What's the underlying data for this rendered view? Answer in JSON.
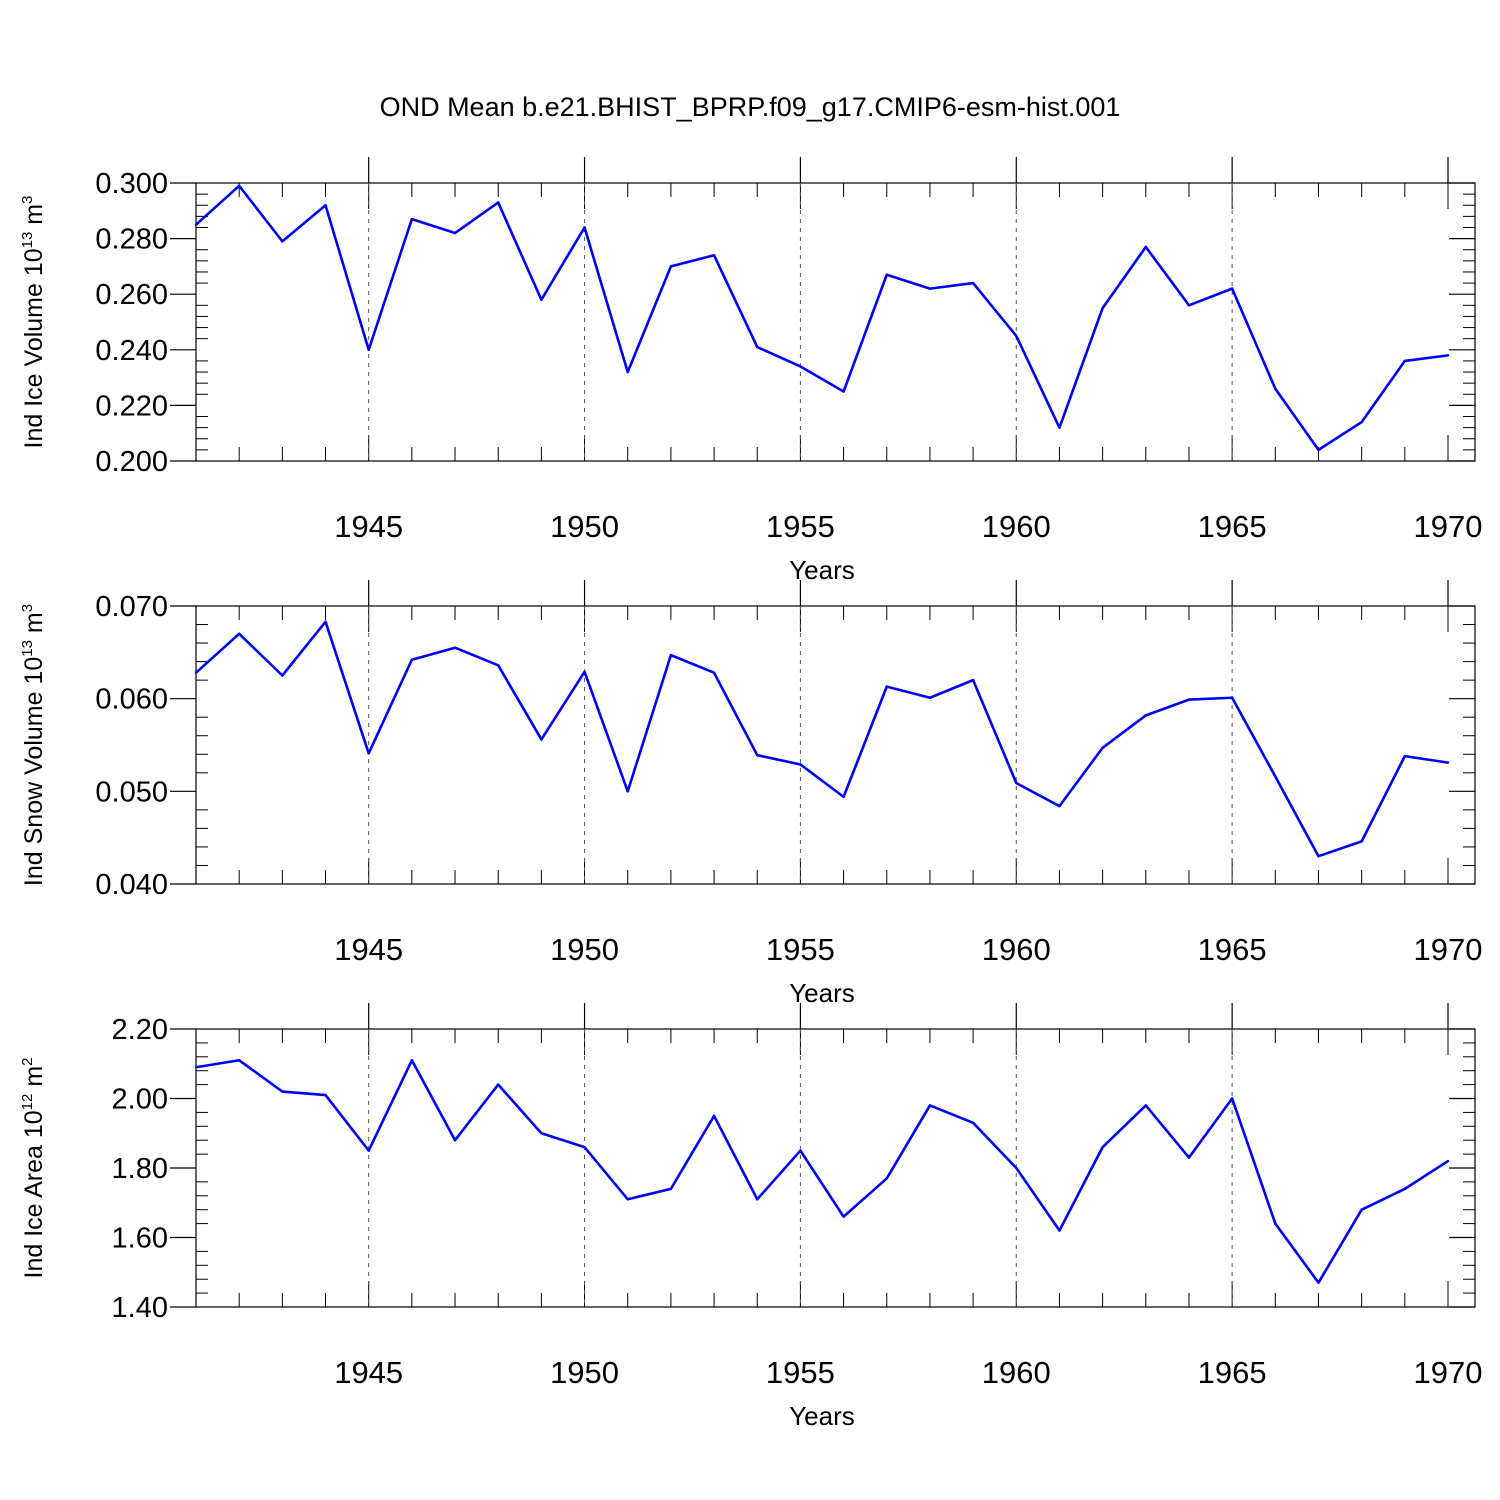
{
  "title": "OND Mean b.e21.BHIST_BPRP.f09_g17.CMIP6-esm-hist.001",
  "line_color": "#0000ff",
  "chart_data": [
    {
      "type": "line",
      "ylabel_main": "Ind Ice Volume 10",
      "ylabel_exp": "13",
      "ylabel_unit": " m",
      "ylabel_unit_exp": "3",
      "xlabel": "Years",
      "xlim": [
        1941,
        1970
      ],
      "ylim": [
        0.2,
        0.3
      ],
      "y_ticks": [
        0.2,
        0.22,
        0.24,
        0.26,
        0.28,
        0.3
      ],
      "y_tick_labels": [
        "0.200",
        "0.220",
        "0.240",
        "0.260",
        "0.280",
        "0.300"
      ],
      "x_ticks": [
        1945,
        1950,
        1955,
        1960,
        1965,
        1970
      ],
      "x_tick_labels": [
        "1945",
        "1950",
        "1955",
        "1960",
        "1965",
        "1970"
      ],
      "x": [
        1941,
        1942,
        1943,
        1944,
        1945,
        1946,
        1947,
        1948,
        1949,
        1950,
        1951,
        1952,
        1953,
        1954,
        1955,
        1956,
        1957,
        1958,
        1959,
        1960,
        1961,
        1962,
        1963,
        1964,
        1965,
        1966,
        1967,
        1968,
        1969,
        1970
      ],
      "values": [
        0.285,
        0.299,
        0.279,
        0.292,
        0.24,
        0.287,
        0.282,
        0.293,
        0.258,
        0.284,
        0.232,
        0.27,
        0.274,
        0.241,
        0.234,
        0.225,
        0.267,
        0.262,
        0.264,
        0.245,
        0.212,
        0.255,
        0.277,
        0.256,
        0.262,
        0.226,
        0.204,
        0.214,
        0.236,
        0.238
      ]
    },
    {
      "type": "line",
      "ylabel_main": "Ind Snow Volume 10",
      "ylabel_exp": "13",
      "ylabel_unit": " m",
      "ylabel_unit_exp": "3",
      "xlabel": "Years",
      "xlim": [
        1941,
        1970
      ],
      "ylim": [
        0.04,
        0.07
      ],
      "y_ticks": [
        0.04,
        0.05,
        0.06,
        0.07
      ],
      "y_tick_labels": [
        "0.040",
        "0.050",
        "0.060",
        "0.070"
      ],
      "x_ticks": [
        1945,
        1950,
        1955,
        1960,
        1965,
        1970
      ],
      "x_tick_labels": [
        "1945",
        "1950",
        "1955",
        "1960",
        "1965",
        "1970"
      ],
      "x": [
        1941,
        1942,
        1943,
        1944,
        1945,
        1946,
        1947,
        1948,
        1949,
        1950,
        1951,
        1952,
        1953,
        1954,
        1955,
        1956,
        1957,
        1958,
        1959,
        1960,
        1961,
        1962,
        1963,
        1964,
        1965,
        1966,
        1967,
        1968,
        1969,
        1970
      ],
      "values": [
        0.0628,
        0.067,
        0.0625,
        0.0683,
        0.0541,
        0.0642,
        0.0655,
        0.0636,
        0.0556,
        0.0629,
        0.05,
        0.0647,
        0.0628,
        0.0539,
        0.0529,
        0.0494,
        0.0613,
        0.0601,
        0.062,
        0.0509,
        0.0484,
        0.0547,
        0.0582,
        0.0599,
        0.0601,
        0.0516,
        0.043,
        0.0446,
        0.0538,
        0.0531
      ]
    },
    {
      "type": "line",
      "ylabel_main": "Ind Ice Area 10",
      "ylabel_exp": "12",
      "ylabel_unit": " m",
      "ylabel_unit_exp": "2",
      "xlabel": "Years",
      "xlim": [
        1941,
        1970
      ],
      "ylim": [
        1.4,
        2.2
      ],
      "y_ticks": [
        1.4,
        1.6,
        1.8,
        2.0,
        2.2
      ],
      "y_tick_labels": [
        "1.40",
        "1.60",
        "1.80",
        "2.00",
        "2.20"
      ],
      "x_ticks": [
        1945,
        1950,
        1955,
        1960,
        1965,
        1970
      ],
      "x_tick_labels": [
        "1945",
        "1950",
        "1955",
        "1960",
        "1965",
        "1970"
      ],
      "x": [
        1941,
        1942,
        1943,
        1944,
        1945,
        1946,
        1947,
        1948,
        1949,
        1950,
        1951,
        1952,
        1953,
        1954,
        1955,
        1956,
        1957,
        1958,
        1959,
        1960,
        1961,
        1962,
        1963,
        1964,
        1965,
        1966,
        1967,
        1968,
        1969,
        1970
      ],
      "values": [
        2.09,
        2.11,
        2.02,
        2.01,
        1.85,
        2.11,
        1.88,
        2.04,
        1.9,
        1.86,
        1.71,
        1.74,
        1.95,
        1.71,
        1.85,
        1.66,
        1.77,
        1.98,
        1.93,
        1.8,
        1.62,
        1.86,
        1.98,
        1.83,
        2.0,
        1.64,
        1.47,
        1.68,
        1.74,
        1.82
      ]
    }
  ]
}
